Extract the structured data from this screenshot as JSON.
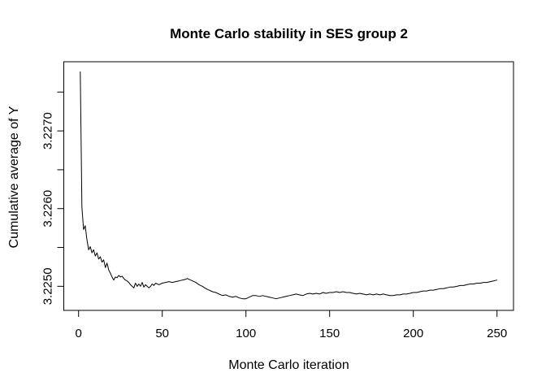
{
  "chart_data": {
    "type": "line",
    "title": "Monte Carlo stability in SES group 2",
    "xlabel": "Monte Carlo iteration",
    "ylabel": "Cumulative average of Y",
    "x_ticks": [
      0,
      50,
      100,
      150,
      200,
      250
    ],
    "x_tick_labels": [
      "0",
      "50",
      "100",
      "150",
      "200",
      "250"
    ],
    "y_ticks": [
      3.225,
      3.2255,
      3.226,
      3.2265,
      3.227,
      3.2275
    ],
    "y_tick_labels": [
      "3.2250",
      "",
      "3.2260",
      "",
      "3.2270",
      ""
    ],
    "xlim": [
      0,
      250
    ],
    "ylim": [
      3.22469,
      3.22789
    ],
    "grid": false,
    "legend": "none",
    "line_color": "#000000",
    "axis_color": "#000000",
    "background_color": "#ffffff",
    "series": [
      {
        "name": "cumulative average of Y",
        "x": [
          1,
          2,
          3,
          4,
          5,
          6,
          7,
          8,
          9,
          10,
          11,
          12,
          13,
          14,
          15,
          16,
          17,
          18,
          19,
          20,
          21,
          22,
          23,
          24,
          25,
          26,
          27,
          28,
          29,
          30,
          31,
          32,
          33,
          34,
          35,
          36,
          37,
          38,
          39,
          40,
          41,
          42,
          43,
          44,
          45,
          46,
          48,
          50,
          52,
          54,
          56,
          58,
          60,
          62,
          64,
          65,
          66,
          68,
          70,
          72,
          74,
          76,
          78,
          80,
          82,
          84,
          86,
          88,
          90,
          92,
          94,
          96,
          98,
          100,
          102,
          104,
          106,
          108,
          110,
          112,
          114,
          116,
          118,
          120,
          122,
          124,
          126,
          128,
          130,
          132,
          134,
          136,
          138,
          140,
          142,
          144,
          146,
          148,
          150,
          152,
          154,
          156,
          158,
          160,
          162,
          164,
          166,
          168,
          170,
          172,
          174,
          176,
          178,
          180,
          182,
          184,
          186,
          188,
          190,
          192,
          194,
          196,
          198,
          200,
          202,
          204,
          206,
          208,
          210,
          212,
          214,
          216,
          218,
          220,
          222,
          224,
          226,
          228,
          230,
          232,
          234,
          236,
          238,
          240,
          242,
          244,
          246,
          248,
          250
        ],
        "y": [
          3.22776,
          3.22602,
          3.22573,
          3.22578,
          3.2256,
          3.22547,
          3.22551,
          3.22543,
          3.22547,
          3.22539,
          3.22543,
          3.22535,
          3.22538,
          3.22531,
          3.22534,
          3.22524,
          3.2253,
          3.22521,
          3.22517,
          3.22512,
          3.22508,
          3.22512,
          3.22511,
          3.22514,
          3.22512,
          3.22513,
          3.2251,
          3.22508,
          3.22507,
          3.22505,
          3.22502,
          3.225,
          3.22498,
          3.22504,
          3.225,
          3.22503,
          3.225,
          3.22505,
          3.22499,
          3.22502,
          3.225,
          3.22498,
          3.225,
          3.22503,
          3.22501,
          3.22504,
          3.22502,
          3.22504,
          3.22505,
          3.22506,
          3.22505,
          3.22506,
          3.22507,
          3.22508,
          3.22509,
          3.2251,
          3.22509,
          3.22507,
          3.22505,
          3.22502,
          3.225,
          3.22497,
          3.22495,
          3.22493,
          3.22492,
          3.2249,
          3.22488,
          3.22489,
          3.22487,
          3.22486,
          3.22487,
          3.22485,
          3.22484,
          3.22484,
          3.22486,
          3.22488,
          3.22488,
          3.22487,
          3.22488,
          3.22487,
          3.22486,
          3.22485,
          3.22484,
          3.22485,
          3.22486,
          3.22487,
          3.22488,
          3.22489,
          3.2249,
          3.22489,
          3.22488,
          3.2249,
          3.22491,
          3.2249,
          3.22491,
          3.2249,
          3.22492,
          3.22491,
          3.22492,
          3.22492,
          3.22493,
          3.22492,
          3.22493,
          3.22492,
          3.22492,
          3.22491,
          3.2249,
          3.22491,
          3.2249,
          3.22489,
          3.2249,
          3.22489,
          3.2249,
          3.22489,
          3.2249,
          3.22489,
          3.22488,
          3.22488,
          3.22489,
          3.22489,
          3.2249,
          3.2249,
          3.22491,
          3.22492,
          3.22492,
          3.22493,
          3.22494,
          3.22494,
          3.22495,
          3.22495,
          3.22496,
          3.22497,
          3.22497,
          3.22498,
          3.22499,
          3.22499,
          3.225,
          3.22501,
          3.22501,
          3.22502,
          3.22503,
          3.22503,
          3.22504,
          3.22504,
          3.22505,
          3.22505,
          3.22506,
          3.22507,
          3.22508
        ]
      }
    ]
  }
}
